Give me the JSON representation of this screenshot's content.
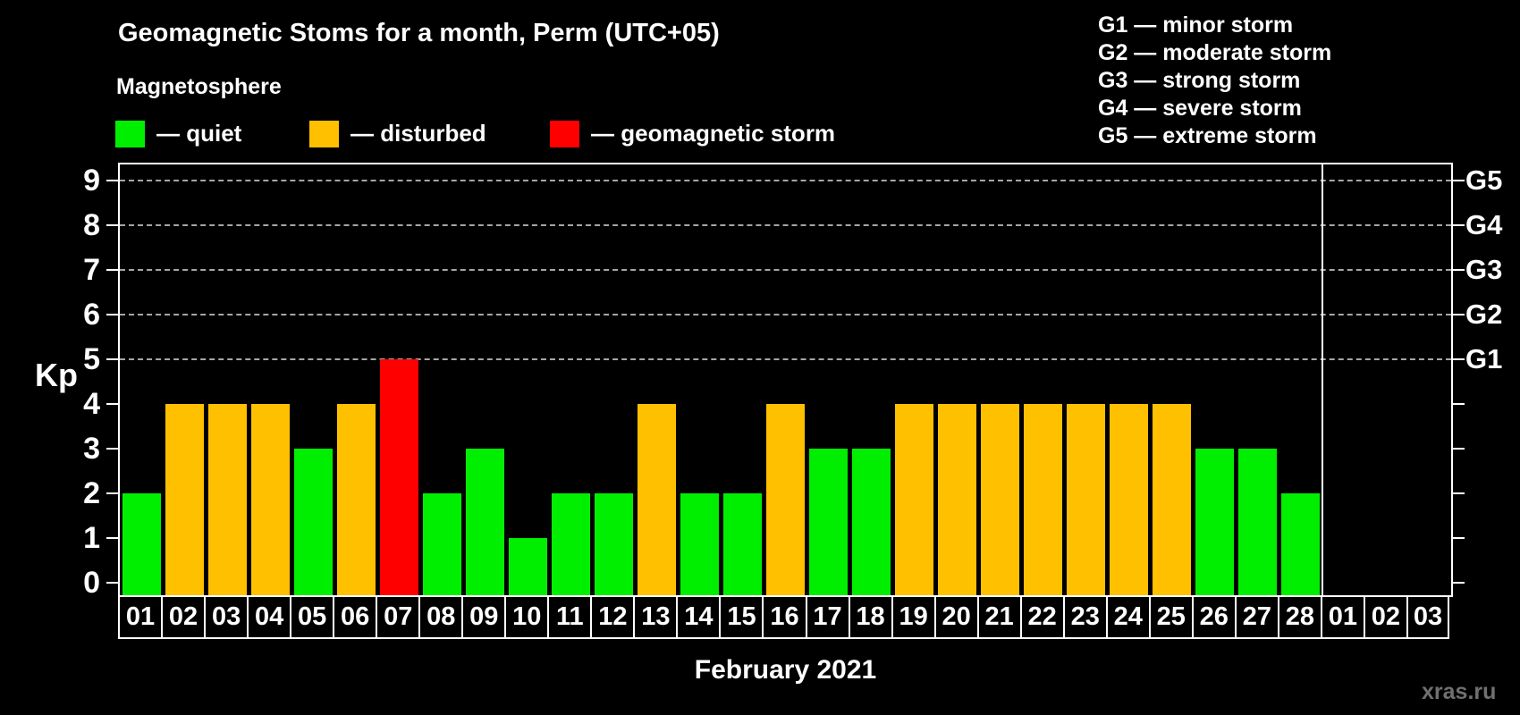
{
  "title": "Geomagnetic Stoms for a month, Perm (UTC+05)",
  "subtitle": "Magnetosphere",
  "legend": {
    "items": [
      {
        "key": "quiet",
        "label": "— quiet",
        "color": "#00ef00"
      },
      {
        "key": "disturbed",
        "label": "— disturbed",
        "color": "#ffc000"
      },
      {
        "key": "storm",
        "label": "— geomagnetic storm",
        "color": "#ff0000"
      }
    ]
  },
  "g_scale_legend": {
    "items": [
      "G1 — minor storm",
      "G2 — moderate storm",
      "G3 — strong storm",
      "G4 — severe storm",
      "G5 — extreme storm"
    ]
  },
  "axis": {
    "kp_label": "Kp",
    "kp_ticks": [
      0,
      1,
      2,
      3,
      4,
      5,
      6,
      7,
      8,
      9
    ],
    "g_levels": [
      {
        "kp": 5,
        "label": "G1"
      },
      {
        "kp": 6,
        "label": "G2"
      },
      {
        "kp": 7,
        "label": "G3"
      },
      {
        "kp": 8,
        "label": "G4"
      },
      {
        "kp": 9,
        "label": "G5"
      }
    ]
  },
  "x_axis": {
    "month_label": "February 2021"
  },
  "watermark": "xras.ru",
  "colors": {
    "quiet": "#00ef00",
    "disturbed": "#ffc000",
    "storm": "#ff0000",
    "background": "#000000",
    "foreground": "#ffffff",
    "grid": "#a6a6a6",
    "watermark": "#707070"
  },
  "chart_data": {
    "type": "bar",
    "title": "Geomagnetic Stoms for a month, Perm (UTC+05)",
    "xlabel": "February 2021",
    "ylabel": "Kp",
    "ylim": [
      0,
      9
    ],
    "grid": "dashed horizontal lines at Kp 5-9 (G1-G5)",
    "legend_position": "top",
    "categories": [
      "01",
      "02",
      "03",
      "04",
      "05",
      "06",
      "07",
      "08",
      "09",
      "10",
      "11",
      "12",
      "13",
      "14",
      "15",
      "16",
      "17",
      "18",
      "19",
      "20",
      "21",
      "22",
      "23",
      "24",
      "25",
      "26",
      "27",
      "28",
      "01",
      "02",
      "03"
    ],
    "values": [
      2,
      4,
      4,
      4,
      3,
      4,
      5,
      2,
      3,
      1,
      2,
      2,
      4,
      2,
      2,
      4,
      3,
      3,
      4,
      4,
      4,
      4,
      4,
      4,
      4,
      3,
      3,
      2,
      null,
      null,
      null
    ],
    "statuses": [
      "quiet",
      "disturbed",
      "disturbed",
      "disturbed",
      "quiet",
      "disturbed",
      "storm",
      "quiet",
      "quiet",
      "quiet",
      "quiet",
      "quiet",
      "disturbed",
      "quiet",
      "quiet",
      "disturbed",
      "quiet",
      "quiet",
      "disturbed",
      "disturbed",
      "disturbed",
      "disturbed",
      "disturbed",
      "disturbed",
      "disturbed",
      "quiet",
      "quiet",
      "quiet",
      "none",
      "none",
      "none"
    ],
    "notes": "Days 01-28 are February 2021; trailing slots 01-03 are March with no data; white divider line separates months"
  }
}
